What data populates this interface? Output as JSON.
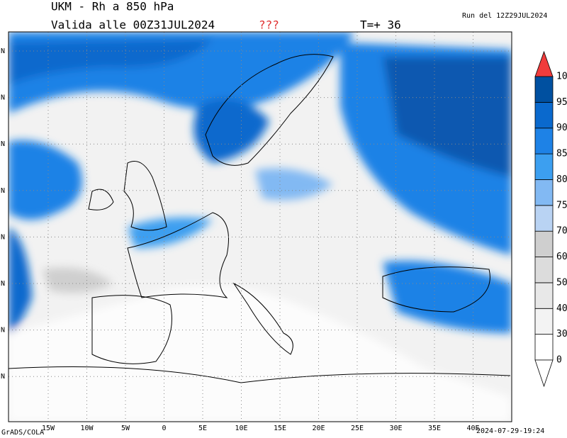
{
  "header": {
    "title": "UKM - Rh a 850 hPa",
    "valid": "Valida alle 00Z31JUL2024",
    "flag": "???",
    "forecast": "T=+ 36",
    "run": "Run del 12Z29JUL2024"
  },
  "map": {
    "lon_labels": [
      "15W",
      "10W",
      "5W",
      "0",
      "5E",
      "10E",
      "15E",
      "20E",
      "25E",
      "30E",
      "35E",
      "40E"
    ],
    "lat_labels": [
      "N",
      "N",
      "N",
      "N",
      "N",
      "N",
      "N",
      "N"
    ]
  },
  "colorbar": {
    "levels": [
      0,
      30,
      40,
      50,
      60,
      70,
      75,
      80,
      85,
      90,
      95,
      100
    ],
    "colors": [
      "#ffffff",
      "#f3f3f3",
      "#e8e8e8",
      "#dcdcdc",
      "#cfcfcf",
      "#b9d3f3",
      "#82b9f3",
      "#3c9ff0",
      "#1e82e6",
      "#0a69cd",
      "#0050a0"
    ],
    "over_color": "#f03c3c",
    "under_color": "#ffffff"
  },
  "footer": {
    "credit": "GrADS/COLA",
    "timestamp": "2024-07-29-19:24"
  }
}
